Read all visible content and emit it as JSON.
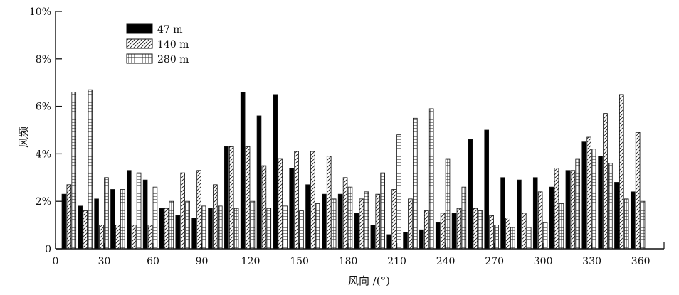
{
  "chart_data": {
    "type": "bar",
    "title": "",
    "xlabel": "风向 /(°)",
    "ylabel": "风频",
    "ylim": [
      0,
      10
    ],
    "xlim": [
      0,
      370
    ],
    "y_unit_suffix": "%",
    "yticks": [
      0,
      2,
      4,
      6,
      8,
      10
    ],
    "yticklabels": [
      "0",
      "2%",
      "4%",
      "6%",
      "8%",
      "10%"
    ],
    "xticks": [
      0,
      30,
      60,
      90,
      120,
      150,
      180,
      210,
      240,
      270,
      300,
      330,
      360
    ],
    "xticklabels": [
      "0",
      "30",
      "60",
      "90",
      "120",
      "150",
      "180",
      "210",
      "240",
      "270",
      "300",
      "330",
      "360"
    ],
    "categories": [
      10,
      20,
      30,
      40,
      50,
      60,
      70,
      80,
      90,
      100,
      110,
      120,
      130,
      140,
      150,
      160,
      170,
      180,
      190,
      200,
      210,
      220,
      230,
      240,
      250,
      260,
      270,
      280,
      290,
      300,
      310,
      320,
      330,
      340,
      350,
      360
    ],
    "series": [
      {
        "name": "47 m",
        "pattern": "solid-black",
        "values": [
          2.3,
          1.8,
          2.1,
          2.5,
          3.3,
          2.9,
          1.7,
          1.4,
          1.3,
          1.7,
          4.3,
          6.6,
          5.6,
          6.5,
          3.4,
          2.7,
          2.3,
          2.3,
          1.5,
          1.0,
          0.6,
          0.7,
          0.8,
          1.1,
          1.5,
          4.6,
          5.0,
          3.0,
          2.9,
          3.0,
          2.6,
          3.3,
          4.5,
          3.9,
          2.8,
          2.4
        ]
      },
      {
        "name": "140 m",
        "pattern": "diagonal-hatch",
        "values": [
          2.7,
          1.6,
          1.0,
          1.0,
          1.0,
          1.0,
          1.7,
          3.2,
          3.3,
          2.7,
          4.3,
          4.3,
          3.5,
          3.8,
          4.1,
          4.1,
          3.9,
          3.0,
          2.1,
          2.3,
          2.5,
          2.1,
          1.6,
          1.5,
          1.7,
          1.7,
          1.4,
          1.3,
          1.5,
          2.4,
          3.4,
          3.3,
          4.7,
          5.7,
          6.5,
          4.9
        ]
      },
      {
        "name": "280 m",
        "pattern": "grid-hatch",
        "values": [
          6.6,
          6.7,
          3.0,
          2.5,
          3.2,
          2.6,
          2.0,
          2.0,
          1.8,
          1.8,
          1.7,
          2.0,
          1.7,
          1.8,
          1.6,
          1.9,
          2.1,
          2.6,
          2.4,
          3.2,
          4.8,
          5.5,
          5.9,
          3.8,
          2.6,
          1.6,
          1.0,
          0.9,
          0.9,
          1.1,
          1.9,
          3.8,
          4.2,
          3.6,
          2.1,
          2.0
        ]
      }
    ],
    "legend": {
      "placement": "top-left",
      "entries": [
        "47 m",
        "140 m",
        "280 m"
      ]
    },
    "grid": false,
    "colors": {
      "axis": "#111111",
      "bar_fill_solid": "#000000",
      "hatch": "#222222",
      "background": "#ffffff"
    }
  }
}
